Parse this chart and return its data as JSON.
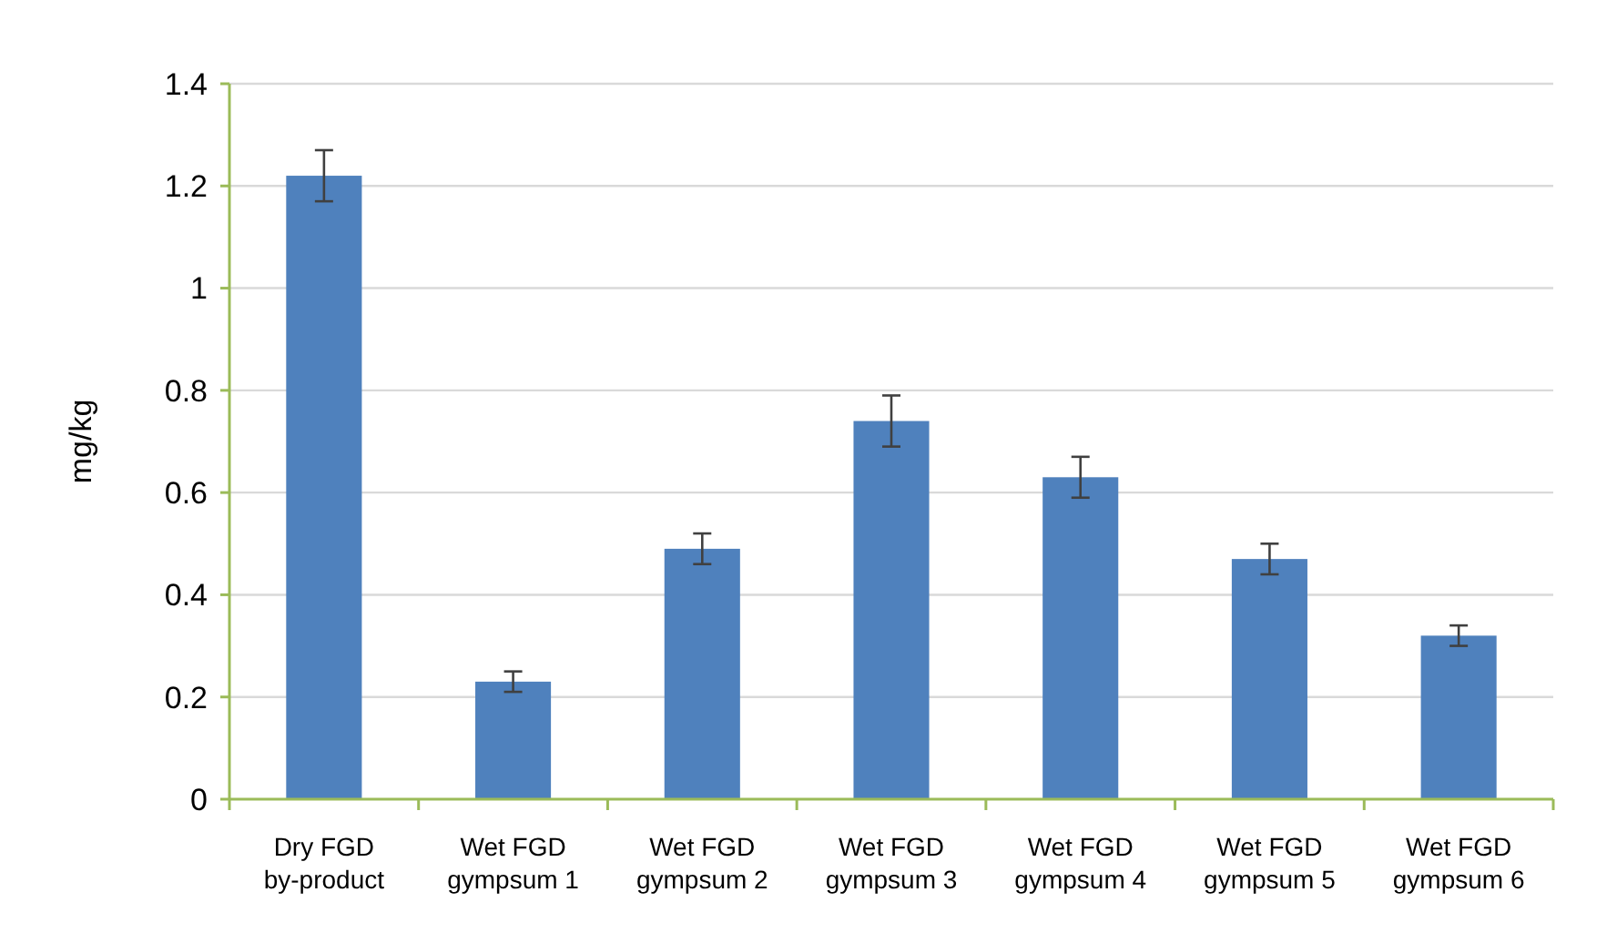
{
  "chart_data": {
    "type": "bar",
    "ylabel": "mg/kg",
    "categories": [
      "Dry FGD\nby-product",
      "Wet FGD\ngympsum 1",
      "Wet FGD\ngympsum 2",
      "Wet FGD\ngympsum 3",
      "Wet FGD\ngympsum 4",
      "Wet FGD\ngympsum 5",
      "Wet FGD\ngympsum 6"
    ],
    "values": [
      1.22,
      0.23,
      0.49,
      0.74,
      0.63,
      0.47,
      0.32
    ],
    "errors": [
      0.05,
      0.02,
      0.03,
      0.05,
      0.04,
      0.03,
      0.02
    ],
    "color": "#4f81bd",
    "ylim": [
      0,
      1.4
    ],
    "yticks": [
      0,
      0.2,
      0.4,
      0.6,
      0.8,
      1,
      1.2,
      1.4
    ],
    "grid": "y"
  }
}
